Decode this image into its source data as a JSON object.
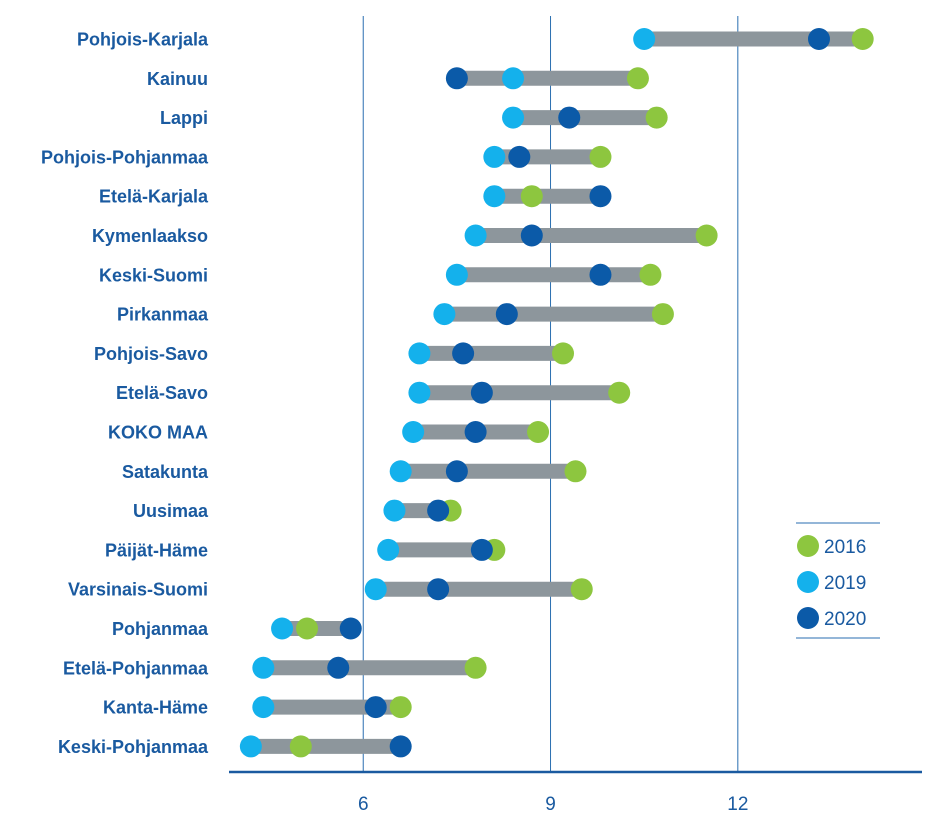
{
  "chart_data": {
    "type": "dot-range",
    "title": "",
    "xlabel": "",
    "ylabel": "",
    "xlim": [
      3.85,
      14.95
    ],
    "xticks": [
      6,
      9,
      12
    ],
    "grid": "vertical",
    "legend_position": "right",
    "colors": {
      "bar": "#8d969c",
      "axis": "#1a5aa0",
      "grid": "#2a6eb0",
      "label": "#1a5aa0",
      "2016": "#8dc63f",
      "2019": "#14b1ec",
      "2020": "#0b5aa8"
    },
    "series": [
      {
        "name": "2016",
        "key": "s2016"
      },
      {
        "name": "2019",
        "key": "s2019"
      },
      {
        "name": "2020",
        "key": "s2020"
      }
    ],
    "categories": [
      "Pohjois-Karjala",
      "Kainuu",
      "Lappi",
      "Pohjois-Pohjanmaa",
      "Etelä-Karjala",
      "Kymenlaakso",
      "Keski-Suomi",
      "Pirkanmaa",
      "Pohjois-Savo",
      "Etelä-Savo",
      "KOKO MAA",
      "Satakunta",
      "Uusimaa",
      "Päijät-Häme",
      "Varsinais-Suomi",
      "Pohjanmaa",
      "Etelä-Pohjanmaa",
      "Kanta-Häme",
      "Keski-Pohjanmaa"
    ],
    "values": {
      "s2016": [
        14.0,
        10.4,
        10.7,
        9.8,
        8.7,
        11.5,
        10.6,
        10.8,
        9.2,
        10.1,
        8.8,
        9.4,
        7.4,
        8.1,
        9.5,
        5.1,
        7.8,
        6.6,
        5.0
      ],
      "s2019": [
        10.5,
        8.4,
        8.4,
        8.1,
        8.1,
        7.8,
        7.5,
        7.3,
        6.9,
        6.9,
        6.8,
        6.6,
        6.5,
        6.4,
        6.2,
        4.7,
        4.4,
        4.4,
        4.2
      ],
      "s2020": [
        13.3,
        7.5,
        9.3,
        8.5,
        9.8,
        8.7,
        9.8,
        8.3,
        7.6,
        7.9,
        7.8,
        7.5,
        7.2,
        7.9,
        7.2,
        5.8,
        5.6,
        6.2,
        6.6
      ]
    }
  }
}
